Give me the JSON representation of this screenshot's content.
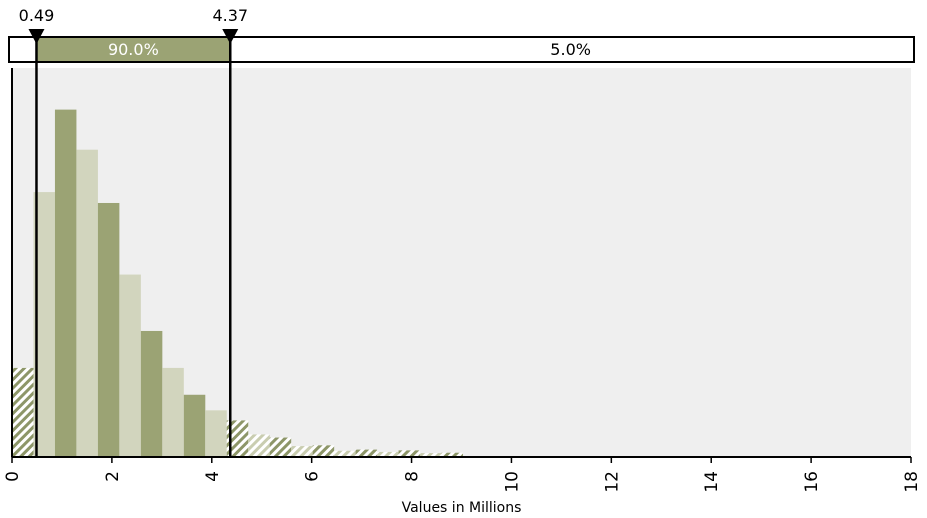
{
  "chart_data": {
    "type": "bar",
    "xlabel": "Values in Millions",
    "ylabel": "",
    "xlim": [
      0,
      18
    ],
    "x_ticks": [
      "0",
      "2",
      "4",
      "6",
      "8",
      "10",
      "12",
      "14",
      "16",
      "18"
    ],
    "bin_width": 0.43,
    "bin_starts": [
      0,
      0.43,
      0.86,
      1.29,
      1.72,
      2.15,
      2.58,
      3.01,
      3.44,
      3.87,
      4.3,
      4.73,
      5.16,
      5.59,
      6.02,
      6.45,
      6.88,
      7.31,
      7.74,
      8.17,
      8.6
    ],
    "values": [
      0.229,
      0.681,
      0.893,
      0.79,
      0.653,
      0.469,
      0.324,
      0.229,
      0.16,
      0.12,
      0.094,
      0.058,
      0.05,
      0.028,
      0.03,
      0.016,
      0.019,
      0.013,
      0.017,
      0.01,
      0.011
    ],
    "grid": false,
    "legend": "none",
    "markers": {
      "lower": {
        "value": 0.49,
        "label": "0.49"
      },
      "upper": {
        "value": 4.37,
        "label": "4.37"
      }
    },
    "percent_bands": {
      "left": "",
      "middle": "90.0%",
      "right": "5.0%"
    },
    "colors": {
      "bar_dark": "#9ba374",
      "bar_light": "#d2d5be",
      "hatch": "#8d9668",
      "band_fill": "#9ba374",
      "plot_bg": "#efefef"
    }
  }
}
